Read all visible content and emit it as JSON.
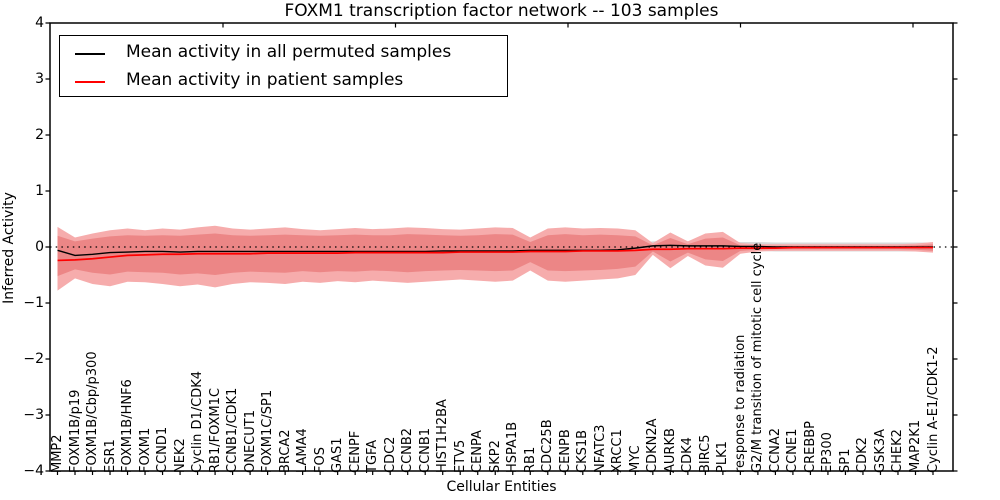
{
  "title": "FOXM1 transcription factor network -- 103 samples",
  "legend": {
    "items": [
      {
        "label": "Mean activity in all permuted samples",
        "color": "#000000"
      },
      {
        "label": "Mean activity in patient samples",
        "color": "#ff0000"
      }
    ]
  },
  "chart_data": {
    "type": "line",
    "title": "FOXM1 transcription factor network -- 103 samples",
    "xlabel": "Cellular Entities",
    "ylabel": "Inferred Activity",
    "ylim": [
      -4,
      4
    ],
    "ytick_labels": [
      "4",
      "3",
      "2",
      "1",
      "0",
      "−1",
      "−2",
      "−3",
      "−4"
    ],
    "ytick_values": [
      4,
      3,
      2,
      1,
      0,
      -1,
      -2,
      -3,
      -4
    ],
    "grid": false,
    "zero_line_style": "dotted",
    "legend_position": "upper left",
    "categories": [
      "MMP2",
      "FOXM1B/p19",
      "FOXM1B/Cbp/p300",
      "ESR1",
      "FOXM1B/HNF6",
      "FOXM1",
      "CCND1",
      "NEK2",
      "Cyclin D1/CDK4",
      "RB1/FOXM1C",
      "CCNB1/CDK1",
      "ONECUT1",
      "FOXM1C/SP1",
      "BRCA2",
      "LAMA4",
      "FOS",
      "GAS1",
      "CENPF",
      "TGFA",
      "CDC2",
      "CCNB2",
      "CCNB1",
      "HIST1H2BA",
      "ETV5",
      "CENPA",
      "SKP2",
      "HSPA1B",
      "RB1",
      "CDC25B",
      "CENPB",
      "CKS1B",
      "NFATC3",
      "XRCC1",
      "MYC",
      "CDKN2A",
      "AURKB",
      "CDK4",
      "BIRC5",
      "PLK1",
      "response to radiation",
      "G2/M transition of mitotic cell cycle",
      "CCNA2",
      "CCNE1",
      "CREBBP",
      "EP300",
      "SP1",
      "CDK2",
      "GSK3A",
      "CHEK2",
      "MAP2K1",
      "Cyclin A-E1/CDK1-2"
    ],
    "series": [
      {
        "name": "Mean activity in all permuted samples",
        "color": "#000000",
        "values": [
          -0.06,
          -0.15,
          -0.13,
          -0.1,
          -0.09,
          -0.08,
          -0.08,
          -0.09,
          -0.08,
          -0.08,
          -0.08,
          -0.08,
          -0.08,
          -0.08,
          -0.08,
          -0.08,
          -0.08,
          -0.08,
          -0.08,
          -0.08,
          -0.08,
          -0.08,
          -0.07,
          -0.07,
          -0.07,
          -0.07,
          -0.07,
          -0.06,
          -0.06,
          -0.06,
          -0.06,
          -0.06,
          -0.05,
          -0.02,
          0.02,
          0.03,
          0.02,
          0.02,
          0.02,
          0.01,
          0.01,
          0.0,
          0.0,
          0.0,
          0.0,
          0.0,
          0.0,
          0.0,
          0.0,
          0.0,
          0.0
        ]
      },
      {
        "name": "Mean activity in patient samples",
        "color": "#ff0000",
        "values": [
          -0.24,
          -0.23,
          -0.21,
          -0.18,
          -0.15,
          -0.14,
          -0.13,
          -0.13,
          -0.12,
          -0.12,
          -0.12,
          -0.12,
          -0.11,
          -0.11,
          -0.11,
          -0.11,
          -0.11,
          -0.1,
          -0.1,
          -0.1,
          -0.1,
          -0.1,
          -0.1,
          -0.09,
          -0.09,
          -0.09,
          -0.09,
          -0.08,
          -0.08,
          -0.08,
          -0.07,
          -0.07,
          -0.07,
          -0.06,
          -0.04,
          -0.04,
          -0.03,
          -0.03,
          -0.03,
          -0.02,
          -0.02,
          -0.02,
          -0.01,
          -0.01,
          -0.01,
          -0.01,
          -0.01,
          -0.01,
          -0.01,
          -0.01,
          -0.01
        ]
      }
    ],
    "bands": [
      {
        "name": "permuted-range",
        "color": "#d9d9d9",
        "around_series": 0,
        "half_width": 0.08
      },
      {
        "name": "patient-outer-range",
        "color": "#f6acac",
        "top": [
          0.36,
          0.17,
          0.24,
          0.3,
          0.33,
          0.3,
          0.33,
          0.31,
          0.35,
          0.38,
          0.33,
          0.31,
          0.33,
          0.35,
          0.32,
          0.3,
          0.32,
          0.34,
          0.32,
          0.33,
          0.35,
          0.34,
          0.32,
          0.31,
          0.33,
          0.35,
          0.34,
          0.17,
          0.33,
          0.35,
          0.33,
          0.34,
          0.33,
          0.3,
          0.07,
          0.26,
          0.1,
          0.24,
          0.27,
          0.07,
          0.05,
          0.05,
          0.05,
          0.05,
          0.05,
          0.05,
          0.05,
          0.05,
          0.05,
          0.06,
          0.09
        ],
        "bottom": [
          -0.78,
          -0.56,
          -0.66,
          -0.7,
          -0.62,
          -0.63,
          -0.66,
          -0.7,
          -0.67,
          -0.72,
          -0.66,
          -0.63,
          -0.64,
          -0.66,
          -0.62,
          -0.64,
          -0.61,
          -0.63,
          -0.6,
          -0.62,
          -0.64,
          -0.62,
          -0.6,
          -0.58,
          -0.6,
          -0.62,
          -0.6,
          -0.42,
          -0.6,
          -0.62,
          -0.6,
          -0.58,
          -0.56,
          -0.5,
          -0.14,
          -0.38,
          -0.16,
          -0.33,
          -0.37,
          -0.12,
          -0.08,
          -0.07,
          -0.07,
          -0.07,
          -0.07,
          -0.07,
          -0.07,
          -0.07,
          -0.07,
          -0.08,
          -0.1
        ]
      },
      {
        "name": "patient-inner-range",
        "color": "#ec8686",
        "top": [
          0.2,
          0.1,
          0.15,
          0.19,
          0.21,
          0.2,
          0.21,
          0.2,
          0.22,
          0.24,
          0.21,
          0.2,
          0.21,
          0.22,
          0.21,
          0.2,
          0.21,
          0.22,
          0.21,
          0.21,
          0.23,
          0.22,
          0.21,
          0.2,
          0.21,
          0.23,
          0.22,
          0.09,
          0.21,
          0.23,
          0.21,
          0.22,
          0.21,
          0.19,
          0.03,
          0.16,
          0.05,
          0.15,
          0.17,
          0.03,
          0.02,
          0.02,
          0.02,
          0.02,
          0.02,
          0.02,
          0.02,
          0.02,
          0.02,
          0.03,
          0.05
        ],
        "bottom": [
          -0.52,
          -0.4,
          -0.46,
          -0.49,
          -0.44,
          -0.45,
          -0.46,
          -0.49,
          -0.47,
          -0.5,
          -0.46,
          -0.44,
          -0.45,
          -0.46,
          -0.43,
          -0.45,
          -0.43,
          -0.44,
          -0.42,
          -0.43,
          -0.45,
          -0.43,
          -0.42,
          -0.41,
          -0.42,
          -0.43,
          -0.42,
          -0.27,
          -0.42,
          -0.43,
          -0.42,
          -0.41,
          -0.39,
          -0.35,
          -0.08,
          -0.26,
          -0.1,
          -0.22,
          -0.25,
          -0.07,
          -0.05,
          -0.04,
          -0.04,
          -0.04,
          -0.04,
          -0.04,
          -0.04,
          -0.04,
          -0.04,
          -0.05,
          -0.07
        ]
      }
    ]
  }
}
